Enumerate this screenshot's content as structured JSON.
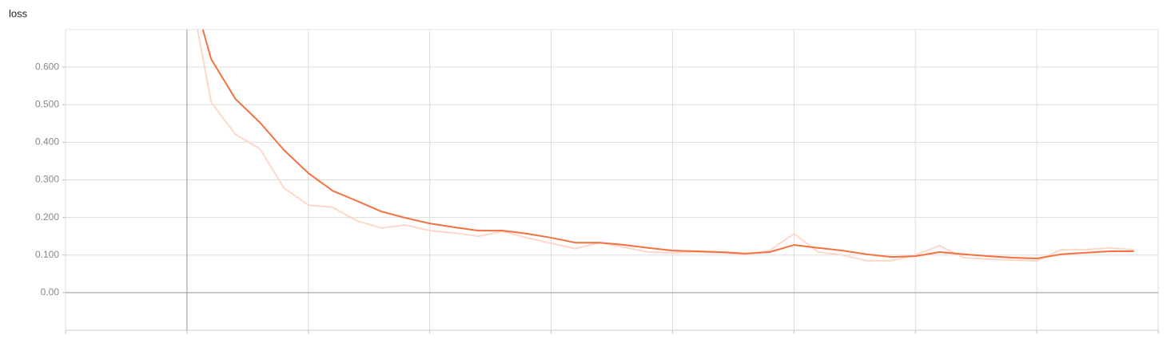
{
  "chart_data": {
    "type": "line",
    "title": "loss",
    "x": [
      0,
      1,
      2,
      3,
      4,
      5,
      6,
      7,
      8,
      9,
      10,
      11,
      12,
      13,
      14,
      15,
      16,
      17,
      18,
      19,
      20,
      21,
      22,
      23,
      24,
      25,
      26,
      27,
      28,
      29,
      30,
      31,
      32,
      33,
      34,
      35,
      36,
      37,
      38,
      39
    ],
    "series": [
      {
        "color": "#ffd7ca",
        "values": [
          0.85,
          0.506,
          0.421,
          0.383,
          0.278,
          0.233,
          0.227,
          0.191,
          0.172,
          0.18,
          0.165,
          0.159,
          0.15,
          0.163,
          0.146,
          0.131,
          0.117,
          0.133,
          0.121,
          0.108,
          0.106,
          0.108,
          0.106,
          0.102,
          0.112,
          0.157,
          0.108,
          0.1,
          0.085,
          0.085,
          0.1,
          0.125,
          0.093,
          0.089,
          0.087,
          0.085,
          0.114,
          0.114,
          0.119,
          0.114
        ]
      },
      {
        "color": "#f4703e",
        "values": [
          0.85,
          0.621,
          0.515,
          0.453,
          0.379,
          0.318,
          0.271,
          0.244,
          0.216,
          0.199,
          0.184,
          0.174,
          0.165,
          0.165,
          0.157,
          0.146,
          0.133,
          0.133,
          0.127,
          0.119,
          0.112,
          0.11,
          0.108,
          0.104,
          0.108,
          0.127,
          0.119,
          0.112,
          0.102,
          0.095,
          0.097,
          0.108,
          0.102,
          0.097,
          0.093,
          0.091,
          0.102,
          0.106,
          0.11,
          0.11
        ]
      }
    ],
    "xlim": [
      -5,
      40
    ],
    "xticks": [
      -5,
      0,
      5,
      10,
      15,
      20,
      25,
      30,
      35,
      40
    ],
    "ylim": [
      -0.1,
      0.7
    ],
    "yticks": [
      {
        "value": 0,
        "label": "0.00"
      },
      {
        "value": 0.1,
        "label": "0.100"
      },
      {
        "value": 0.2,
        "label": "0.200"
      },
      {
        "value": 0.3,
        "label": "0.300"
      },
      {
        "value": 0.4,
        "label": "0.400"
      },
      {
        "value": 0.5,
        "label": "0.500"
      },
      {
        "value": 0.6,
        "label": "0.600"
      }
    ],
    "grid": true
  }
}
